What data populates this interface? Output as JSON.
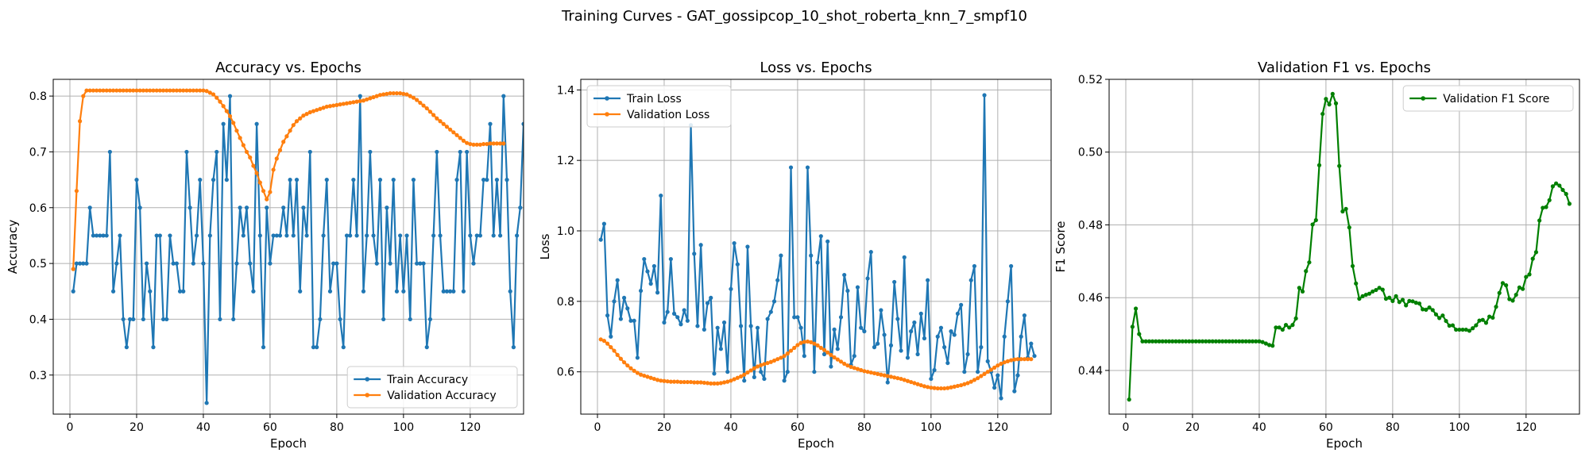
{
  "figure": {
    "suptitle": "Training Curves - GAT_gossipcop_10_shot_roberta_knn_7_smpf10"
  },
  "colors": {
    "train": "#1f77b4",
    "validation": "#ff7f0e",
    "f1": "#008000",
    "grid": "#b0b0b0"
  },
  "chart_data": [
    {
      "type": "line",
      "title": "Accuracy vs. Epochs",
      "xlabel": "Epoch",
      "ylabel": "Accuracy",
      "xlim": [
        -5,
        136
      ],
      "ylim": [
        0.23,
        0.83
      ],
      "xticks": [
        0,
        20,
        40,
        60,
        80,
        100,
        120
      ],
      "yticks": [
        0.3,
        0.4,
        0.5,
        0.6,
        0.7,
        0.8
      ],
      "grid": true,
      "legend": "lower right",
      "series": [
        {
          "name": "Train Accuracy",
          "color": "#1f77b4",
          "x_start": 1,
          "values": [
            0.45,
            0.5,
            0.5,
            0.5,
            0.5,
            0.6,
            0.55,
            0.55,
            0.55,
            0.55,
            0.55,
            0.7,
            0.45,
            0.5,
            0.55,
            0.4,
            0.35,
            0.4,
            0.4,
            0.65,
            0.6,
            0.4,
            0.5,
            0.45,
            0.35,
            0.55,
            0.55,
            0.4,
            0.4,
            0.55,
            0.5,
            0.5,
            0.45,
            0.45,
            0.7,
            0.6,
            0.5,
            0.55,
            0.65,
            0.5,
            0.25,
            0.55,
            0.65,
            0.7,
            0.4,
            0.75,
            0.65,
            0.8,
            0.4,
            0.5,
            0.6,
            0.55,
            0.6,
            0.5,
            0.45,
            0.75,
            0.55,
            0.35,
            0.6,
            0.5,
            0.55,
            0.55,
            0.55,
            0.6,
            0.55,
            0.65,
            0.55,
            0.65,
            0.45,
            0.6,
            0.55,
            0.7,
            0.35,
            0.35,
            0.4,
            0.55,
            0.65,
            0.45,
            0.5,
            0.5,
            0.4,
            0.35,
            0.55,
            0.55,
            0.65,
            0.55,
            0.8,
            0.45,
            0.55,
            0.7,
            0.55,
            0.5,
            0.65,
            0.4,
            0.6,
            0.5,
            0.65,
            0.45,
            0.55,
            0.45,
            0.55,
            0.4,
            0.65,
            0.5,
            0.5,
            0.5,
            0.35,
            0.4,
            0.55,
            0.7,
            0.55,
            0.45,
            0.45,
            0.45,
            0.45,
            0.65,
            0.7,
            0.45,
            0.7,
            0.55,
            0.5,
            0.55,
            0.55,
            0.65,
            0.65,
            0.75,
            0.55,
            0.65,
            0.55,
            0.8,
            0.65,
            0.45,
            0.35,
            0.55,
            0.6,
            0.75
          ]
        },
        {
          "name": "Validation Accuracy",
          "color": "#ff7f0e",
          "x_start": 1,
          "values": [
            0.49,
            0.63,
            0.755,
            0.8,
            0.81,
            0.81,
            0.81,
            0.81,
            0.81,
            0.81,
            0.81,
            0.81,
            0.81,
            0.81,
            0.81,
            0.81,
            0.81,
            0.81,
            0.81,
            0.81,
            0.81,
            0.81,
            0.81,
            0.81,
            0.81,
            0.81,
            0.81,
            0.81,
            0.81,
            0.81,
            0.81,
            0.81,
            0.81,
            0.81,
            0.81,
            0.81,
            0.81,
            0.81,
            0.81,
            0.81,
            0.809,
            0.806,
            0.803,
            0.797,
            0.79,
            0.782,
            0.773,
            0.764,
            0.752,
            0.738,
            0.725,
            0.712,
            0.7,
            0.69,
            0.675,
            0.662,
            0.645,
            0.63,
            0.615,
            0.628,
            0.668,
            0.688,
            0.703,
            0.718,
            0.728,
            0.738,
            0.748,
            0.755,
            0.76,
            0.765,
            0.768,
            0.771,
            0.773,
            0.775,
            0.777,
            0.779,
            0.781,
            0.782,
            0.783,
            0.784,
            0.785,
            0.786,
            0.787,
            0.788,
            0.789,
            0.79,
            0.791,
            0.792,
            0.794,
            0.796,
            0.798,
            0.8,
            0.802,
            0.803,
            0.804,
            0.805,
            0.805,
            0.805,
            0.805,
            0.804,
            0.803,
            0.8,
            0.797,
            0.793,
            0.788,
            0.783,
            0.778,
            0.772,
            0.766,
            0.76,
            0.755,
            0.75,
            0.745,
            0.74,
            0.735,
            0.73,
            0.725,
            0.72,
            0.716,
            0.714,
            0.713,
            0.713,
            0.713,
            0.714,
            0.714,
            0.715,
            0.715,
            0.715,
            0.715,
            0.715
          ]
        }
      ]
    },
    {
      "type": "line",
      "title": "Loss vs. Epochs",
      "xlabel": "Epoch",
      "ylabel": "Loss",
      "xlim": [
        -5,
        136
      ],
      "ylim": [
        0.48,
        1.43
      ],
      "xticks": [
        0,
        20,
        40,
        60,
        80,
        100,
        120
      ],
      "yticks": [
        0.6,
        0.8,
        1.0,
        1.2,
        1.4
      ],
      "grid": true,
      "legend": "upper left",
      "series": [
        {
          "name": "Train Loss",
          "color": "#1f77b4",
          "x_start": 1,
          "values": [
            0.975,
            1.02,
            0.76,
            0.7,
            0.8,
            0.86,
            0.75,
            0.81,
            0.78,
            0.745,
            0.745,
            0.64,
            0.83,
            0.92,
            0.885,
            0.85,
            0.9,
            0.825,
            1.1,
            0.74,
            0.77,
            0.92,
            0.765,
            0.755,
            0.735,
            0.775,
            0.745,
            1.3,
            0.935,
            0.73,
            0.96,
            0.72,
            0.795,
            0.81,
            0.595,
            0.725,
            0.665,
            0.74,
            0.6,
            0.835,
            0.965,
            0.905,
            0.73,
            0.575,
            0.955,
            0.73,
            0.585,
            0.725,
            0.6,
            0.58,
            0.75,
            0.77,
            0.8,
            0.86,
            0.93,
            0.575,
            0.6,
            1.18,
            0.755,
            0.755,
            0.725,
            0.645,
            1.18,
            0.93,
            0.6,
            0.91,
            0.985,
            0.65,
            0.97,
            0.615,
            0.72,
            0.665,
            0.755,
            0.875,
            0.83,
            0.62,
            0.645,
            0.84,
            0.725,
            0.715,
            0.865,
            0.94,
            0.67,
            0.68,
            0.775,
            0.705,
            0.57,
            0.675,
            0.855,
            0.75,
            0.66,
            0.925,
            0.64,
            0.715,
            0.74,
            0.65,
            0.765,
            0.695,
            0.86,
            0.58,
            0.605,
            0.7,
            0.725,
            0.67,
            0.625,
            0.715,
            0.705,
            0.765,
            0.79,
            0.6,
            0.65,
            0.86,
            0.9,
            0.6,
            0.67,
            1.385,
            0.63,
            0.6,
            0.555,
            0.59,
            0.525,
            0.7,
            0.8,
            0.9,
            0.545,
            0.59,
            0.7,
            0.76,
            0.64,
            0.68,
            0.645
          ]
        },
        {
          "name": "Validation Loss",
          "color": "#ff7f0e",
          "x_start": 1,
          "values": [
            0.692,
            0.688,
            0.68,
            0.67,
            0.66,
            0.648,
            0.637,
            0.627,
            0.618,
            0.61,
            0.603,
            0.597,
            0.592,
            0.589,
            0.586,
            0.583,
            0.58,
            0.577,
            0.575,
            0.574,
            0.573,
            0.572,
            0.572,
            0.572,
            0.571,
            0.571,
            0.571,
            0.571,
            0.57,
            0.57,
            0.57,
            0.569,
            0.568,
            0.567,
            0.567,
            0.567,
            0.568,
            0.57,
            0.572,
            0.575,
            0.579,
            0.583,
            0.587,
            0.592,
            0.598,
            0.604,
            0.61,
            0.615,
            0.619,
            0.622,
            0.625,
            0.628,
            0.632,
            0.636,
            0.64,
            0.645,
            0.652,
            0.66,
            0.668,
            0.676,
            0.682,
            0.685,
            0.686,
            0.684,
            0.68,
            0.675,
            0.668,
            0.662,
            0.655,
            0.648,
            0.641,
            0.635,
            0.629,
            0.623,
            0.618,
            0.614,
            0.611,
            0.608,
            0.605,
            0.602,
            0.6,
            0.598,
            0.596,
            0.594,
            0.592,
            0.59,
            0.588,
            0.586,
            0.584,
            0.582,
            0.58,
            0.577,
            0.574,
            0.571,
            0.568,
            0.565,
            0.562,
            0.559,
            0.557,
            0.555,
            0.554,
            0.553,
            0.553,
            0.553,
            0.554,
            0.556,
            0.558,
            0.56,
            0.562,
            0.565,
            0.568,
            0.572,
            0.577,
            0.582,
            0.588,
            0.594,
            0.6,
            0.606,
            0.612,
            0.618,
            0.623,
            0.627,
            0.63,
            0.633,
            0.635,
            0.636,
            0.636,
            0.636,
            0.636,
            0.636
          ]
        }
      ]
    },
    {
      "type": "line",
      "title": "Validation F1 vs. Epochs",
      "xlabel": "Epoch",
      "ylabel": "F1 Score",
      "xlim": [
        -5,
        136
      ],
      "ylim": [
        0.428,
        0.52
      ],
      "xticks": [
        0,
        20,
        40,
        60,
        80,
        100,
        120
      ],
      "yticks": [
        0.44,
        0.46,
        0.48,
        0.5,
        0.52
      ],
      "grid": true,
      "legend": "upper right",
      "series": [
        {
          "name": "Validation F1 Score",
          "color": "#008000",
          "x_start": 1,
          "values": [
            0.432,
            0.452,
            0.457,
            0.45,
            0.448,
            0.448,
            0.448,
            0.448,
            0.448,
            0.448,
            0.448,
            0.448,
            0.448,
            0.448,
            0.448,
            0.448,
            0.448,
            0.448,
            0.448,
            0.448,
            0.448,
            0.448,
            0.448,
            0.448,
            0.448,
            0.448,
            0.448,
            0.448,
            0.448,
            0.448,
            0.448,
            0.448,
            0.448,
            0.448,
            0.448,
            0.448,
            0.448,
            0.448,
            0.448,
            0.448,
            0.4478,
            0.4474,
            0.447,
            0.4468,
            0.4518,
            0.4518,
            0.4512,
            0.4525,
            0.4518,
            0.4525,
            0.4543,
            0.4627,
            0.4617,
            0.4673,
            0.4697,
            0.4801,
            0.4813,
            0.4964,
            0.5105,
            0.5146,
            0.5131,
            0.516,
            0.5134,
            0.4962,
            0.4837,
            0.4844,
            0.4793,
            0.4687,
            0.4639,
            0.4597,
            0.4604,
            0.4608,
            0.4611,
            0.4617,
            0.4621,
            0.4627,
            0.4622,
            0.4597,
            0.46,
            0.4591,
            0.4604,
            0.4588,
            0.4594,
            0.4579,
            0.4591,
            0.459,
            0.4586,
            0.4584,
            0.4568,
            0.4567,
            0.4573,
            0.4566,
            0.4554,
            0.4544,
            0.4551,
            0.4536,
            0.4523,
            0.4524,
            0.4512,
            0.4512,
            0.4512,
            0.4512,
            0.4509,
            0.4516,
            0.4524,
            0.4537,
            0.4539,
            0.4531,
            0.4548,
            0.4545,
            0.4575,
            0.4613,
            0.464,
            0.4634,
            0.4596,
            0.4592,
            0.4608,
            0.4628,
            0.4624,
            0.4657,
            0.4664,
            0.4707,
            0.4725,
            0.4812,
            0.4847,
            0.4849,
            0.4868,
            0.4906,
            0.4914,
            0.4908,
            0.4896,
            0.4885,
            0.4858
          ]
        }
      ]
    }
  ]
}
